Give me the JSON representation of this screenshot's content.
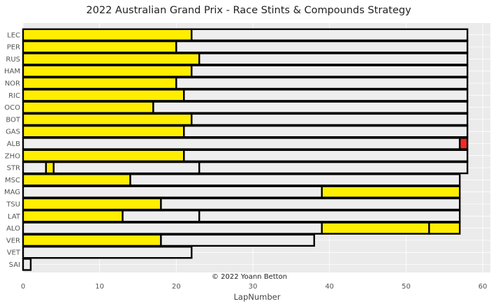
{
  "chart_data": {
    "type": "bar",
    "orientation": "horizontal",
    "stacked": true,
    "title": "2022 Australian Grand Prix - Race Stints & Compounds Strategy",
    "xlabel": "LapNumber",
    "ylabel": "",
    "xlim": [
      0,
      61
    ],
    "xticks": [
      0,
      10,
      20,
      30,
      40,
      50,
      60
    ],
    "grid": true,
    "credit": "© 2022 Yoann Betton",
    "compound_colors": {
      "MEDIUM": "#ffee00",
      "HARD": "#eeeeee",
      "SOFT": "#ee2b2b"
    },
    "drivers": [
      {
        "driver": "LEC",
        "stints": [
          {
            "compound": "MEDIUM",
            "laps": 22
          },
          {
            "compound": "HARD",
            "laps": 36
          }
        ]
      },
      {
        "driver": "PER",
        "stints": [
          {
            "compound": "MEDIUM",
            "laps": 20
          },
          {
            "compound": "HARD",
            "laps": 38
          }
        ]
      },
      {
        "driver": "RUS",
        "stints": [
          {
            "compound": "MEDIUM",
            "laps": 23
          },
          {
            "compound": "HARD",
            "laps": 35
          }
        ]
      },
      {
        "driver": "HAM",
        "stints": [
          {
            "compound": "MEDIUM",
            "laps": 22
          },
          {
            "compound": "HARD",
            "laps": 36
          }
        ]
      },
      {
        "driver": "NOR",
        "stints": [
          {
            "compound": "MEDIUM",
            "laps": 20
          },
          {
            "compound": "HARD",
            "laps": 38
          }
        ]
      },
      {
        "driver": "RIC",
        "stints": [
          {
            "compound": "MEDIUM",
            "laps": 21
          },
          {
            "compound": "HARD",
            "laps": 37
          }
        ]
      },
      {
        "driver": "OCO",
        "stints": [
          {
            "compound": "MEDIUM",
            "laps": 17
          },
          {
            "compound": "HARD",
            "laps": 41
          }
        ]
      },
      {
        "driver": "BOT",
        "stints": [
          {
            "compound": "MEDIUM",
            "laps": 22
          },
          {
            "compound": "HARD",
            "laps": 36
          }
        ]
      },
      {
        "driver": "GAS",
        "stints": [
          {
            "compound": "MEDIUM",
            "laps": 21
          },
          {
            "compound": "HARD",
            "laps": 37
          }
        ]
      },
      {
        "driver": "ALB",
        "stints": [
          {
            "compound": "HARD",
            "laps": 57
          },
          {
            "compound": "SOFT",
            "laps": 1
          }
        ]
      },
      {
        "driver": "ZHO",
        "stints": [
          {
            "compound": "MEDIUM",
            "laps": 21
          },
          {
            "compound": "HARD",
            "laps": 37
          }
        ]
      },
      {
        "driver": "STR",
        "stints": [
          {
            "compound": "HARD",
            "laps": 3
          },
          {
            "compound": "MEDIUM",
            "laps": 1
          },
          {
            "compound": "HARD",
            "laps": 19
          },
          {
            "compound": "HARD",
            "laps": 35
          }
        ]
      },
      {
        "driver": "MSC",
        "stints": [
          {
            "compound": "MEDIUM",
            "laps": 14
          },
          {
            "compound": "HARD",
            "laps": 43
          }
        ]
      },
      {
        "driver": "MAG",
        "stints": [
          {
            "compound": "HARD",
            "laps": 39
          },
          {
            "compound": "MEDIUM",
            "laps": 18
          }
        ]
      },
      {
        "driver": "TSU",
        "stints": [
          {
            "compound": "MEDIUM",
            "laps": 18
          },
          {
            "compound": "HARD",
            "laps": 39
          }
        ]
      },
      {
        "driver": "LAT",
        "stints": [
          {
            "compound": "MEDIUM",
            "laps": 13
          },
          {
            "compound": "HARD",
            "laps": 10
          },
          {
            "compound": "HARD",
            "laps": 34
          }
        ]
      },
      {
        "driver": "ALO",
        "stints": [
          {
            "compound": "HARD",
            "laps": 39
          },
          {
            "compound": "MEDIUM",
            "laps": 14
          },
          {
            "compound": "MEDIUM",
            "laps": 4
          }
        ]
      },
      {
        "driver": "VER",
        "stints": [
          {
            "compound": "MEDIUM",
            "laps": 18
          },
          {
            "compound": "HARD",
            "laps": 20
          }
        ]
      },
      {
        "driver": "VET",
        "stints": [
          {
            "compound": "HARD",
            "laps": 22
          }
        ]
      },
      {
        "driver": "SAI",
        "stints": [
          {
            "compound": "HARD",
            "laps": 1
          }
        ]
      }
    ]
  }
}
